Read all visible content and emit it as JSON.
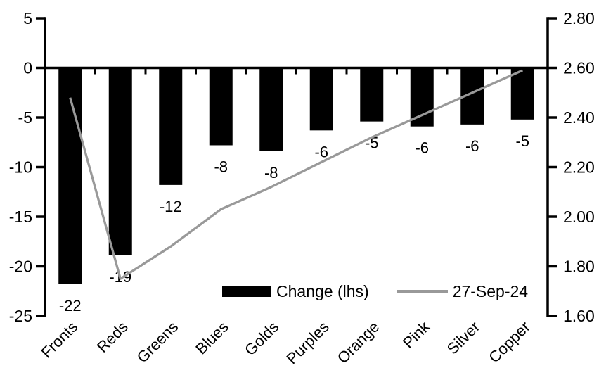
{
  "chart_data": {
    "type": "bar",
    "subtype": "bar-line-combo",
    "title": "",
    "grid": false,
    "legend_position": "bottom-inside",
    "background": "#ffffff",
    "axis_color": "#000000",
    "text_color": "#000000",
    "categories": [
      "Fronts",
      "Reds",
      "Greens",
      "Blues",
      "Golds",
      "Purples",
      "Orange",
      "Pink",
      "Silver",
      "Copper"
    ],
    "series": [
      {
        "name": "Change (lhs)",
        "type": "bar",
        "axis": "left",
        "color": "#000000",
        "values": [
          -22,
          -19,
          -12,
          -8,
          -8,
          -6,
          -5,
          -6,
          -6,
          -5
        ],
        "values_precise": [
          -21.8,
          -18.9,
          -11.8,
          -7.8,
          -8.4,
          -6.3,
          -5.4,
          -5.9,
          -5.7,
          -5.2
        ],
        "data_labels": [
          "-22",
          "-19",
          "-12",
          "-8",
          "-8",
          "-6",
          "-5",
          "-6",
          "-6",
          "-5"
        ]
      },
      {
        "name": "27-Sep-24",
        "type": "line",
        "axis": "right",
        "color": "#999999",
        "values": [
          2.48,
          1.75,
          1.88,
          2.03,
          2.12,
          2.22,
          2.32,
          2.41,
          2.5,
          2.59
        ]
      }
    ],
    "left_axis": {
      "min": -25,
      "max": 5,
      "step": 5,
      "ticks": [
        "5",
        "0",
        "-5",
        "-10",
        "-15",
        "-20",
        "-25"
      ]
    },
    "right_axis": {
      "min": 1.6,
      "max": 2.8,
      "step": 0.2,
      "ticks": [
        "2.80",
        "2.60",
        "2.40",
        "2.20",
        "2.00",
        "1.80",
        "1.60"
      ]
    },
    "legend": [
      {
        "label": "Change (lhs)",
        "swatch": "bar",
        "color": "#000000"
      },
      {
        "label": "27-Sep-24",
        "swatch": "line",
        "color": "#999999"
      }
    ]
  }
}
